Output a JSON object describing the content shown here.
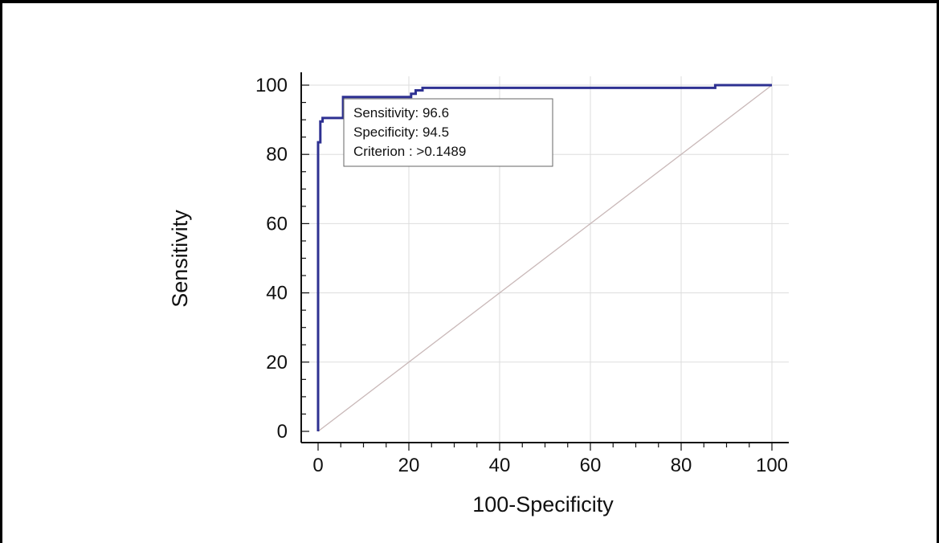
{
  "chart_data": {
    "type": "line",
    "xlabel": "100-Specificity",
    "ylabel": "Sensitivity",
    "xlim": [
      0,
      100
    ],
    "ylim": [
      0,
      100
    ],
    "x_ticks": [
      "0",
      "20",
      "40",
      "60",
      "80",
      "100"
    ],
    "y_ticks": [
      "0",
      "20",
      "40",
      "60",
      "80",
      "100"
    ],
    "grid": true,
    "series": [
      {
        "color": "#2e3192",
        "x": [
          0,
          0,
          0.5,
          0.5,
          1,
          1,
          2,
          2,
          5.5,
          5.5,
          20.5,
          20.5,
          21.5,
          21.5,
          23,
          23,
          87.5,
          87.5,
          100
        ],
        "y": [
          0,
          83.5,
          83.5,
          89.5,
          89.5,
          90.5,
          90.5,
          90.5,
          90.5,
          96.6,
          96.6,
          97.5,
          97.5,
          98.5,
          98.5,
          99.2,
          99.2,
          100,
          100
        ]
      },
      {
        "color": "#c9b8b8",
        "x": [
          0,
          100
        ],
        "y": [
          0,
          100
        ]
      }
    ],
    "annotation": {
      "lines": [
        "Sensitivity: 96.6",
        "Specificity: 94.5",
        "Criterion : >0.1489"
      ]
    }
  }
}
